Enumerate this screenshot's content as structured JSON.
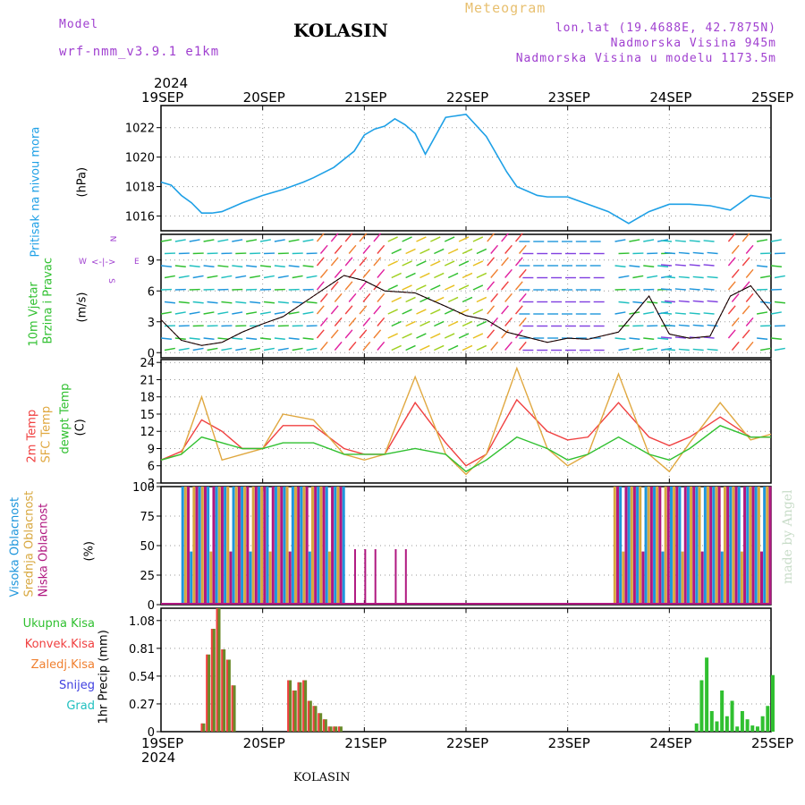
{
  "header": {
    "model_label": "Model",
    "model_name": "wrf-nmm_v3.9.1  e1km",
    "station": "KOLASIN",
    "meteogram_label": "Meteogram",
    "lonlat": "lon,lat (19.4688E, 42.7875N)",
    "elevation": "Nadmorska Visina 945m",
    "model_elevation": "Nadmorska Visina u modelu 1173.5m"
  },
  "footer": {
    "station": "KOLASIN",
    "watermark": "made by Angel"
  },
  "year": "2024",
  "days": [
    "19SEP",
    "20SEP",
    "21SEP",
    "22SEP",
    "23SEP",
    "24SEP",
    "25SEP"
  ],
  "colors": {
    "pressure": "#1ea0e6",
    "temp2m": "#f04040",
    "sfc": "#e0a840",
    "dew": "#30c030",
    "high": "#1e96dc",
    "mid": "#d8a840",
    "low": "#b01880",
    "total": "#30c030",
    "conv": "#f04040",
    "frozen": "#f08030",
    "snow": "#4040e0",
    "grad": "#20c0c0"
  },
  "panels": {
    "pressure": {
      "label1": "Pritisak na nivou mora",
      "unit": "(hPa)",
      "ticks": [
        "1016",
        "1018",
        "1020",
        "1022"
      ]
    },
    "wind": {
      "label1": "10m Vjetar",
      "label2": "Brzina i Pravac",
      "unit": "(m/s)",
      "ticks": [
        "0",
        "3",
        "6",
        "9"
      ],
      "compass_n": "N",
      "compass_s": "S",
      "compass_w": "W",
      "compass_e": "E"
    },
    "temp": {
      "label1": "2m Temp",
      "label2": "SFC Temp",
      "label3": "dewpt Temp",
      "unit": "(C)",
      "ticks": [
        "3",
        "6",
        "9",
        "12",
        "15",
        "18",
        "21",
        "24"
      ]
    },
    "cloud": {
      "label1": "Visoka Oblacnost",
      "label2": "Srednja Oblacnost",
      "label3": "Niska Oblacnost",
      "unit": "(%)",
      "ticks": [
        "0",
        "25",
        "50",
        "75",
        "100"
      ]
    },
    "precip": {
      "legend": [
        "Ukupna Kisa",
        "Konvek.Kisa",
        "Zaledj.Kisa",
        "Snijeg",
        "Grad"
      ],
      "unit": "1hr Precip (mm)",
      "ticks": [
        "0",
        "0.27",
        "0.54",
        "0.81",
        "1.08"
      ]
    }
  },
  "chart_data": [
    {
      "type": "line",
      "title": "Pritisak na nivou mora",
      "ylabel": "hPa",
      "ylim": [
        1015,
        1023.5
      ],
      "x_days": [
        0,
        0.1,
        0.2,
        0.3,
        0.4,
        0.5,
        0.6,
        0.8,
        1.0,
        1.2,
        1.4,
        1.5,
        1.7,
        1.9,
        2.0,
        2.1,
        2.2,
        2.3,
        2.4,
        2.5,
        2.6,
        2.8,
        3.0,
        3.2,
        3.4,
        3.5,
        3.6,
        3.7,
        3.8,
        4.0,
        4.2,
        4.4,
        4.6,
        4.8,
        5.0,
        5.2,
        5.4,
        5.6,
        5.8,
        6.0
      ],
      "series": [
        {
          "values": [
            1018.3,
            1018.1,
            1017.4,
            1016.9,
            1016.2,
            1016.2,
            1016.3,
            1016.9,
            1017.4,
            1017.8,
            1018.3,
            1018.6,
            1019.3,
            1020.4,
            1021.5,
            1021.9,
            1022.1,
            1022.6,
            1022.2,
            1021.6,
            1020.2,
            1022.7,
            1022.9,
            1021.4,
            1019.0,
            1018.0,
            1017.7,
            1017.4,
            1017.3,
            1017.3,
            1016.8,
            1016.3,
            1015.5,
            1016.3,
            1016.8,
            1016.8,
            1016.7,
            1016.4,
            1017.4,
            1017.2
          ]
        }
      ]
    },
    {
      "type": "line",
      "title": "10m Vjetar",
      "ylabel": "m/s",
      "ylim": [
        -0.5,
        11.5
      ],
      "x_days": [
        0,
        0.2,
        0.4,
        0.6,
        0.8,
        1.0,
        1.2,
        1.5,
        1.8,
        2.0,
        2.2,
        2.5,
        2.8,
        3.0,
        3.2,
        3.4,
        3.6,
        3.8,
        4.0,
        4.2,
        4.5,
        4.8,
        5.0,
        5.2,
        5.4,
        5.6,
        5.8,
        6.0
      ],
      "series": [
        {
          "values": [
            3.2,
            1.2,
            0.7,
            1.0,
            2.0,
            2.8,
            3.5,
            5.5,
            7.5,
            7.0,
            6.0,
            5.8,
            4.5,
            3.6,
            3.2,
            2.0,
            1.5,
            1.0,
            1.4,
            1.3,
            2.0,
            5.5,
            1.8,
            1.4,
            1.6,
            5.5,
            6.5,
            4.0
          ]
        }
      ]
    },
    {
      "type": "line",
      "title": "2m Temp / SFC Temp / dewpt Temp",
      "ylabel": "C",
      "ylim": [
        3,
        24.5
      ],
      "x_days": [
        0,
        0.2,
        0.4,
        0.6,
        0.8,
        1.0,
        1.2,
        1.5,
        1.8,
        2.0,
        2.2,
        2.5,
        2.8,
        3.0,
        3.2,
        3.5,
        3.8,
        4.0,
        4.2,
        4.5,
        4.8,
        5.0,
        5.2,
        5.5,
        5.8,
        6.0
      ],
      "series": [
        {
          "name": "2m Temp",
          "values": [
            7,
            8.5,
            14,
            12,
            9,
            9,
            13,
            13,
            9,
            8,
            8,
            17,
            10,
            6,
            8,
            17.5,
            12,
            10.5,
            11,
            17,
            11,
            9.5,
            11,
            14.5,
            11,
            11
          ]
        },
        {
          "name": "SFC Temp",
          "values": [
            7,
            8,
            18,
            7,
            8,
            9,
            15,
            14,
            8,
            7,
            8,
            21.5,
            8,
            4.5,
            8,
            23,
            9,
            6,
            8,
            22,
            8,
            5,
            10,
            17,
            10.5,
            11.5
          ]
        },
        {
          "name": "dewpt Temp",
          "values": [
            7,
            8,
            11,
            10,
            9,
            9,
            10,
            10,
            8,
            8,
            8,
            9,
            8,
            5,
            7,
            11,
            9,
            7,
            8,
            11,
            8,
            7,
            9,
            13,
            11,
            11
          ]
        }
      ]
    },
    {
      "type": "bar",
      "title": "Oblacnost",
      "ylabel": "%",
      "ylim": [
        0,
        100
      ],
      "periods": [
        {
          "from": 0.2,
          "to": 1.8,
          "value": 100
        },
        {
          "from": 4.45,
          "to": 6.0,
          "value": 100
        }
      ]
    },
    {
      "type": "bar",
      "title": "1hr Precip",
      "ylabel": "mm",
      "ylim": [
        0,
        1.2
      ],
      "x_days": [
        0.4,
        0.45,
        0.5,
        0.55,
        0.6,
        0.65,
        0.7,
        1.25,
        1.3,
        1.35,
        1.4,
        1.45,
        1.5,
        1.55,
        1.6,
        1.65,
        1.7,
        1.75,
        5.25,
        5.3,
        5.35,
        5.4,
        5.45,
        5.5,
        5.55,
        5.6,
        5.65,
        5.7,
        5.75,
        5.8,
        5.85,
        5.9,
        5.95,
        6.0
      ],
      "values": [
        0.08,
        0.75,
        1.0,
        1.2,
        0.8,
        0.7,
        0.45,
        0.5,
        0.4,
        0.48,
        0.5,
        0.3,
        0.25,
        0.18,
        0.12,
        0.05,
        0.05,
        0.05,
        0.08,
        0.5,
        0.72,
        0.2,
        0.1,
        0.4,
        0.15,
        0.3,
        0.05,
        0.2,
        0.12,
        0.06,
        0.05,
        0.15,
        0.25,
        0.55
      ]
    }
  ]
}
